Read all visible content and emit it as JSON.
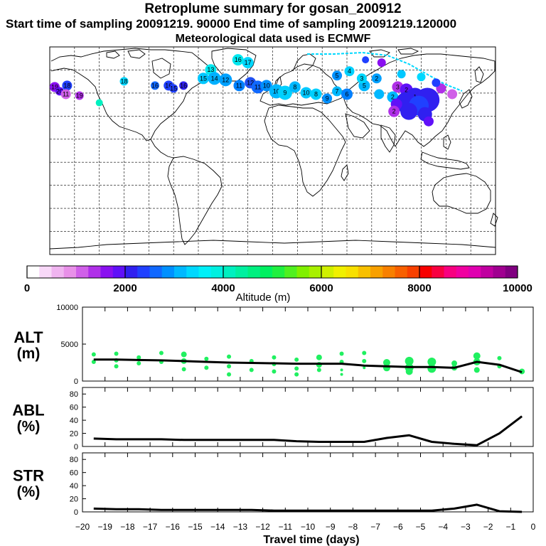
{
  "header": {
    "title": "Retroplume summary for gosan_200912",
    "sampling_line": "Start time of sampling 20091219. 90000     End time of sampling 20091219.120000",
    "met_line": "Meteorological data used is ECMWF"
  },
  "colorbar": {
    "label": "Altitude (m)",
    "ticks": [
      "0",
      "2000",
      "4000",
      "6000",
      "8000",
      "10000"
    ],
    "colors": [
      "#ffffff",
      "#f8d8f8",
      "#f0b4f0",
      "#e890e8",
      "#d060e8",
      "#b030e8",
      "#8a10f0",
      "#6010f8",
      "#3020f0",
      "#2040ff",
      "#1068ff",
      "#0090ff",
      "#00b8ff",
      "#00d8ff",
      "#00f0f8",
      "#00f0e0",
      "#00f0c0",
      "#00f0a0",
      "#00f080",
      "#00f060",
      "#20f040",
      "#50f020",
      "#80f000",
      "#a8f000",
      "#d0f000",
      "#f0f000",
      "#f8e000",
      "#f8c000",
      "#f8a000",
      "#f88000",
      "#f86000",
      "#f84000",
      "#f80000",
      "#f80040",
      "#f80080",
      "#f000a0",
      "#e000b0",
      "#c000a0",
      "#a00090",
      "#800080"
    ]
  },
  "map": {
    "markers": [
      {
        "n": "17",
        "lon": -20,
        "lat": 74,
        "color": "#00d8ff",
        "size": 8
      },
      {
        "n": "16",
        "lon": -28,
        "lat": 76,
        "color": "#00e8f0",
        "size": 8
      },
      {
        "n": "13",
        "lon": -50,
        "lat": 69,
        "color": "#00e8f0",
        "size": 8
      },
      {
        "n": "15",
        "lon": -56,
        "lat": 63,
        "color": "#00c8ff",
        "size": 8
      },
      {
        "n": "14",
        "lon": -47,
        "lat": 63,
        "color": "#00b0ff",
        "size": 9
      },
      {
        "n": "12",
        "lon": -38,
        "lat": 62,
        "color": "#00a0ff",
        "size": 9
      },
      {
        "n": "11",
        "lon": -27,
        "lat": 58,
        "color": "#0080ff",
        "size": 8
      },
      {
        "n": "12",
        "lon": -18,
        "lat": 60,
        "color": "#2050f0",
        "size": 8
      },
      {
        "n": "11",
        "lon": -12,
        "lat": 57,
        "color": "#1068ff",
        "size": 9
      },
      {
        "n": "10",
        "lon": -5,
        "lat": 58,
        "color": "#0090ff",
        "size": 8
      },
      {
        "n": "10",
        "lon": 3,
        "lat": 54,
        "color": "#00b8ff",
        "size": 10
      },
      {
        "n": "9",
        "lon": 10,
        "lat": 53,
        "color": "#00d0ff",
        "size": 10
      },
      {
        "n": "8",
        "lon": 18,
        "lat": 57,
        "color": "#00b8ff",
        "size": 8
      },
      {
        "n": "10",
        "lon": 27,
        "lat": 53,
        "color": "#00c8ff",
        "size": 8
      },
      {
        "n": "8",
        "lon": 35,
        "lat": 52,
        "color": "#00d0ff",
        "size": 8
      },
      {
        "n": "9",
        "lon": 44,
        "lat": 49,
        "color": "#0090ff",
        "size": 7
      },
      {
        "n": "7",
        "lon": 52,
        "lat": 54,
        "color": "#00b8ff",
        "size": 7
      },
      {
        "n": "6",
        "lon": 60,
        "lat": 52,
        "color": "#0080ff",
        "size": 8
      },
      {
        "n": "5",
        "lon": 74,
        "lat": 58,
        "color": "#00b8ff",
        "size": 8
      },
      {
        "n": "5",
        "lon": 52,
        "lat": 65,
        "color": "#0090ff",
        "size": 7
      },
      {
        "n": "4",
        "lon": 62,
        "lat": 68,
        "color": "#00d0ff",
        "size": 7
      },
      {
        "n": "3",
        "lon": 72,
        "lat": 63,
        "color": "#00d8ff",
        "size": 7
      },
      {
        "n": "2",
        "lon": 84,
        "lat": 63,
        "color": "#00a0ff",
        "size": 7
      },
      {
        "n": "18",
        "lon": -120,
        "lat": 61,
        "color": "#00d8ff",
        "size": 6
      },
      {
        "n": "16",
        "lon": -95,
        "lat": 58,
        "color": "#1068ff",
        "size": 6
      },
      {
        "n": "16",
        "lon": -84,
        "lat": 58,
        "color": "#2040ff",
        "size": 7
      },
      {
        "n": "15",
        "lon": -80,
        "lat": 56,
        "color": "#2040ff",
        "size": 6
      },
      {
        "n": "16",
        "lon": -72,
        "lat": 58,
        "color": "#3020f0",
        "size": 6
      },
      {
        "n": "18",
        "lon": -166,
        "lat": 58,
        "color": "#2040ff",
        "size": 7
      },
      {
        "n": "19",
        "lon": -176,
        "lat": 57,
        "color": "#8a10f0",
        "size": 7
      },
      {
        "n": "20",
        "lon": -172,
        "lat": 54,
        "color": "#6010f8",
        "size": 6
      },
      {
        "n": "11",
        "lon": -167,
        "lat": 52,
        "color": "#d060e8",
        "size": 7
      },
      {
        "n": "19",
        "lon": -156,
        "lat": 51,
        "color": "#b030e8",
        "size": 6
      },
      {
        "n": "3",
        "lon": 101,
        "lat": 57,
        "color": "#b030e8",
        "size": 8
      },
      {
        "n": "2",
        "lon": 108,
        "lat": 55,
        "color": "#6010f8",
        "size": 9
      },
      {
        "n": "2",
        "lon": 97,
        "lat": 50,
        "color": "#00b8ff",
        "size": 8
      },
      {
        "n": "1",
        "lon": 115,
        "lat": 50,
        "color": "#3020f0",
        "size": 13
      },
      {
        "n": "",
        "lon": 125,
        "lat": 48,
        "color": "#3020f0",
        "size": 17
      },
      {
        "n": "",
        "lon": 108,
        "lat": 46,
        "color": "#3020f0",
        "size": 15
      },
      {
        "n": "",
        "lon": 118,
        "lat": 44,
        "color": "#2040ff",
        "size": 14
      },
      {
        "n": "",
        "lon": 100,
        "lat": 45,
        "color": "#6010f8",
        "size": 8
      },
      {
        "n": "2",
        "lon": 98,
        "lat": 40,
        "color": "#b030e8",
        "size": 8
      },
      {
        "n": "",
        "lon": 110,
        "lat": 40,
        "color": "#3020f0",
        "size": 12
      },
      {
        "n": "",
        "lon": 123,
        "lat": 38,
        "color": "#3020f0",
        "size": 10
      },
      {
        "n": "",
        "lon": 126,
        "lat": 33,
        "color": "#6010f8",
        "size": 7
      },
      {
        "n": "",
        "lon": 86,
        "lat": 52,
        "color": "#00b8ff",
        "size": 7
      },
      {
        "n": "",
        "lon": 88,
        "lat": 74,
        "color": "#8a10f0",
        "size": 6
      },
      {
        "n": "",
        "lon": 75,
        "lat": 76,
        "color": "#2040ff",
        "size": 5
      },
      {
        "n": "",
        "lon": 136,
        "lat": 56,
        "color": "#b030e8",
        "size": 7
      },
      {
        "n": "",
        "lon": 145,
        "lat": 52,
        "color": "#d060e8",
        "size": 7
      },
      {
        "n": "",
        "lon": 132,
        "lat": 60,
        "color": "#2040ff",
        "size": 6
      },
      {
        "n": "",
        "lon": 104,
        "lat": 66,
        "color": "#00c8ff",
        "size": 6
      },
      {
        "n": "",
        "lon": 120,
        "lat": 64,
        "color": "#00d8ff",
        "size": 6
      },
      {
        "n": "",
        "lon": -140,
        "lat": 46,
        "color": "#00f0c0",
        "size": 5
      }
    ]
  },
  "chart_data": [
    {
      "type": "scatter+line",
      "name": "ALT",
      "ylabel": "ALT",
      "yunit": "(m)",
      "ylim": [
        0,
        10000
      ],
      "yticks": [
        0,
        5000,
        10000
      ],
      "xlim": [
        -20,
        0
      ],
      "line_x": [
        -19.5,
        -18.5,
        -17.5,
        -16.5,
        -15.5,
        -14.5,
        -13.5,
        -12.5,
        -11.5,
        -10.5,
        -9.5,
        -8.5,
        -7.5,
        -6.5,
        -5.5,
        -4.5,
        -3.5,
        -2.5,
        -1.5,
        -0.5
      ],
      "line_y": [
        2900,
        2900,
        2850,
        2800,
        2700,
        2600,
        2500,
        2450,
        2400,
        2350,
        2350,
        2350,
        2100,
        2000,
        1900,
        1900,
        1800,
        2600,
        2200,
        1200
      ],
      "points": [
        {
          "x": -19.5,
          "y": 2600
        },
        {
          "x": -19.5,
          "y": 3600
        },
        {
          "x": -18.5,
          "y": 2800
        },
        {
          "x": -18.5,
          "y": 3700
        },
        {
          "x": -18.5,
          "y": 2000
        },
        {
          "x": -17.5,
          "y": 2400
        },
        {
          "x": -17.5,
          "y": 3200
        },
        {
          "x": -16.5,
          "y": 3800
        },
        {
          "x": -16.5,
          "y": 2600
        },
        {
          "x": -15.5,
          "y": 3600
        },
        {
          "x": -15.5,
          "y": 2700
        },
        {
          "x": -15.5,
          "y": 1600
        },
        {
          "x": -14.5,
          "y": 3000
        },
        {
          "x": -14.5,
          "y": 1800
        },
        {
          "x": -13.5,
          "y": 3300
        },
        {
          "x": -13.5,
          "y": 2000
        },
        {
          "x": -13.5,
          "y": 900
        },
        {
          "x": -12.5,
          "y": 2700
        },
        {
          "x": -12.5,
          "y": 1500
        },
        {
          "x": -11.5,
          "y": 3200
        },
        {
          "x": -11.5,
          "y": 2300
        },
        {
          "x": -11.5,
          "y": 1300
        },
        {
          "x": -10.5,
          "y": 2900
        },
        {
          "x": -10.5,
          "y": 1700
        },
        {
          "x": -10.5,
          "y": 900
        },
        {
          "x": -9.5,
          "y": 3200
        },
        {
          "x": -9.5,
          "y": 2200
        },
        {
          "x": -9.5,
          "y": 1500
        },
        {
          "x": -8.5,
          "y": 3700
        },
        {
          "x": -8.5,
          "y": 2600
        },
        {
          "x": -8.5,
          "y": 1500
        },
        {
          "x": -8.5,
          "y": 900
        },
        {
          "x": -7.5,
          "y": 3800
        },
        {
          "x": -7.5,
          "y": 2700
        },
        {
          "x": -7.5,
          "y": 1800
        },
        {
          "x": -6.5,
          "y": 2500
        },
        {
          "x": -6.5,
          "y": 1800
        },
        {
          "x": -5.5,
          "y": 2700
        },
        {
          "x": -5.5,
          "y": 1800
        },
        {
          "x": -5.5,
          "y": 1300
        },
        {
          "x": -4.5,
          "y": 2600
        },
        {
          "x": -4.5,
          "y": 1700
        },
        {
          "x": -3.5,
          "y": 2400
        },
        {
          "x": -3.5,
          "y": 1800
        },
        {
          "x": -2.5,
          "y": 3400
        },
        {
          "x": -2.5,
          "y": 2600
        },
        {
          "x": -2.5,
          "y": 1500
        },
        {
          "x": -1.5,
          "y": 3100
        },
        {
          "x": -1.5,
          "y": 2000
        },
        {
          "x": -0.5,
          "y": 1300
        }
      ],
      "point_sizes": [
        3,
        3,
        3,
        3,
        3,
        3,
        3,
        3,
        3,
        4,
        4,
        3,
        3,
        3,
        3,
        3,
        3,
        3,
        3,
        3,
        3,
        3,
        3,
        3,
        3,
        4,
        4,
        3,
        3,
        3,
        2,
        2,
        3,
        3,
        2,
        5,
        5,
        6,
        6,
        5,
        6,
        6,
        4,
        4,
        5,
        5,
        4,
        3,
        3,
        4
      ],
      "point_color": "#20f060"
    },
    {
      "type": "line",
      "name": "ABL",
      "ylabel": "ABL",
      "yunit": "(%)",
      "ylim": [
        0,
        90
      ],
      "yticks": [
        0,
        20,
        40,
        60,
        80
      ],
      "xlim": [
        -20,
        0
      ],
      "x": [
        -19.5,
        -18.5,
        -17.5,
        -16.5,
        -15.5,
        -14.5,
        -13.5,
        -12.5,
        -11.5,
        -10.5,
        -9.5,
        -8.5,
        -7.5,
        -6.5,
        -5.5,
        -4.5,
        -3.5,
        -2.5,
        -1.5,
        -0.5
      ],
      "y": [
        12,
        11,
        11,
        11,
        10,
        10,
        10,
        10,
        10,
        8,
        7,
        7,
        7,
        13,
        17,
        7,
        4,
        2,
        20,
        46
      ]
    },
    {
      "type": "line",
      "name": "STR",
      "ylabel": "STR",
      "yunit": "(%)",
      "ylim": [
        0,
        90
      ],
      "yticks": [
        0,
        20,
        40,
        60,
        80
      ],
      "xlim": [
        -20,
        0
      ],
      "x": [
        -19.5,
        -18.5,
        -17.5,
        -16.5,
        -15.5,
        -14.5,
        -13.5,
        -12.5,
        -11.5,
        -10.5,
        -9.5,
        -8.5,
        -7.5,
        -6.5,
        -5.5,
        -4.5,
        -3.5,
        -2.5,
        -1.5,
        -0.5
      ],
      "y": [
        5,
        4,
        4,
        3,
        3,
        3,
        3,
        3,
        2,
        2,
        2,
        2,
        2,
        2,
        2,
        2,
        5,
        11,
        1,
        0
      ]
    }
  ],
  "xaxis": {
    "label": "Travel time (days)",
    "ticks": [
      "−20",
      "−19",
      "−18",
      "−17",
      "−16",
      "−15",
      "−14",
      "−13",
      "−12",
      "−11",
      "−10",
      "−9",
      "−8",
      "−7",
      "−6",
      "−5",
      "−4",
      "−3",
      "−2",
      "−1",
      "0"
    ]
  }
}
